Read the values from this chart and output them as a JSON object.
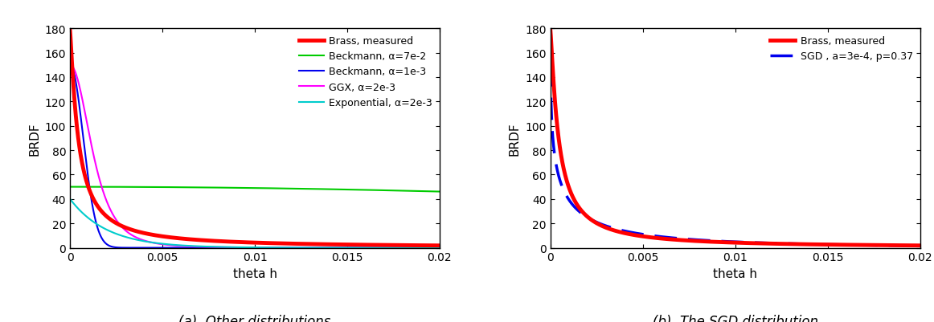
{
  "xlim": [
    0,
    0.02
  ],
  "ylim": [
    0,
    180
  ],
  "yticks": [
    0,
    20,
    40,
    60,
    80,
    100,
    120,
    140,
    160,
    180
  ],
  "xticks": [
    0,
    0.005,
    0.01,
    0.015,
    0.02
  ],
  "xtick_labels": [
    "0",
    "0.005",
    "0.01",
    "0.015",
    "0.02"
  ],
  "xlabel": "theta h",
  "ylabel": "BRDF",
  "caption_a": "(a)  Other distributions",
  "caption_b": "(b)  The SGD distribution",
  "brass_color": "#ff0000",
  "brass_lw": 3.5,
  "brass_label": "Brass, measured",
  "beckmann1_color": "#00cc00",
  "beckmann1_lw": 1.5,
  "beckmann1_label": "Beckmann, α=7e-2",
  "beckmann2_color": "#0000ee",
  "beckmann2_lw": 1.5,
  "beckmann2_label": "Beckmann, α=1e-3",
  "ggx_color": "#ff00ff",
  "ggx_lw": 1.5,
  "ggx_label": "GGX, α=2e-3",
  "exponential_color": "#00cccc",
  "exponential_lw": 1.5,
  "exponential_label": "Exponential, α=2e-3",
  "sgd_color": "#0000ee",
  "sgd_lw": 2.5,
  "sgd_label": "SGD , a=3e-4, p=0.37",
  "peak_value": 178
}
